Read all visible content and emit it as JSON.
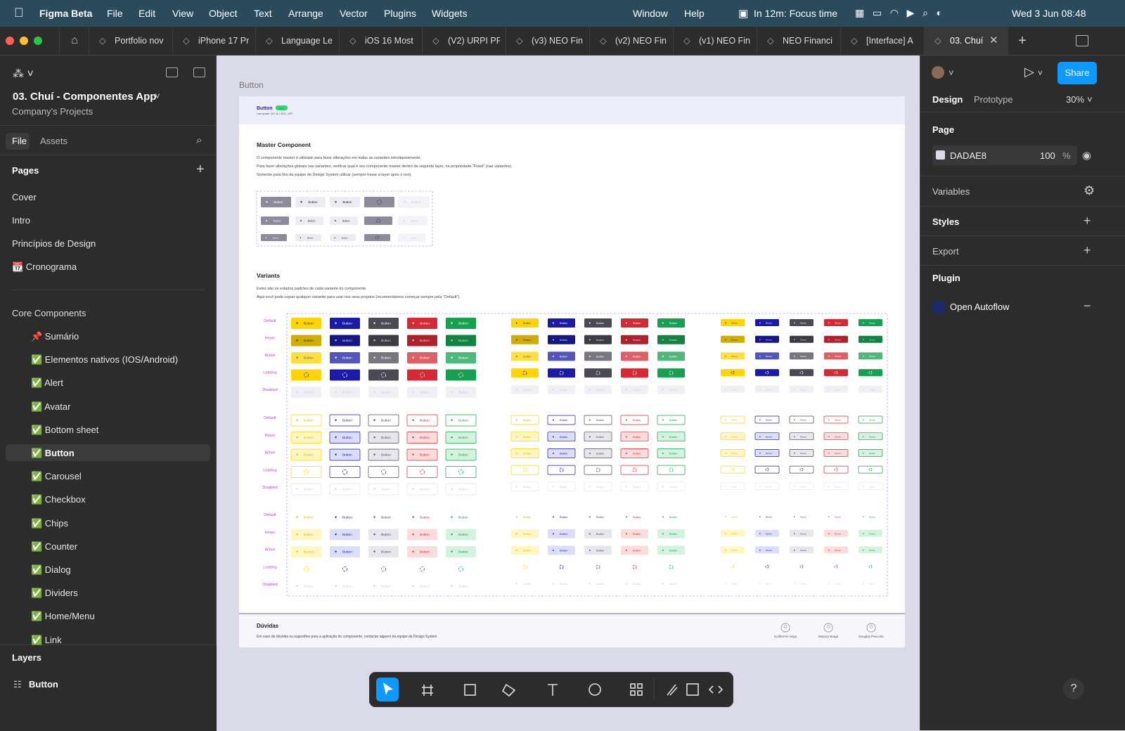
{
  "menubar": {
    "app": "Figma Beta",
    "menus": [
      "File",
      "Edit",
      "View",
      "Object",
      "Text",
      "Arrange",
      "Vector",
      "Plugins",
      "Widgets"
    ],
    "right_menus": [
      "Window",
      "Help"
    ],
    "focus": "In 12m: Focus time",
    "datetime": "Wed 3 Jun 08:48"
  },
  "tabs": [
    "Portfolio nov",
    "iPhone 17 Pr",
    "Language Le",
    "iOS 16 Most",
    "(V2) URPI PR",
    "(v3) NEO Fin",
    "(v2) NEO Fin",
    "(v1) NEO Fin",
    "NEO Financi",
    "[Interface] A",
    "03. Chuí"
  ],
  "left_panel": {
    "file_title": "03. Chuí - Componentes App",
    "team": "Company's Projects",
    "tabs": [
      "File",
      "Assets"
    ],
    "pages_heading": "Pages",
    "pages": [
      "Cover",
      "Intro",
      "Princípios de Design",
      "📆 Cronograma"
    ],
    "section": "Core Components",
    "components": [
      "📌 Sumário",
      "✅ Elementos nativos (IOS/Android)",
      "✅ Alert",
      "✅ Avatar",
      "✅ Bottom sheet",
      "✅ Button",
      "✅ Carousel",
      "✅ Checkbox",
      "✅ Chips",
      "✅ Counter",
      "✅ Dialog",
      "✅ Dividers",
      "✅ Home/Menu",
      "✅ Link"
    ],
    "layers_heading": "Layers",
    "layer": "Button"
  },
  "right_panel": {
    "tabs": [
      "Design",
      "Prototype"
    ],
    "zoom": "30%",
    "share": "Share",
    "page_heading": "Page",
    "page_color": "DADAE8",
    "opacity": "100",
    "opacity_unit": "%",
    "sections": [
      "Variables",
      "Styles",
      "Export"
    ],
    "plugin_heading": "Plugin",
    "plugin": "Open Autoflow"
  },
  "canvas": {
    "frame_label": "Button",
    "header_title": "Button",
    "badge": "New",
    "last_update": "Last update: 09 / 06 / 2022 - APP",
    "master_heading": "Master Component",
    "master_text": [
      "O componente master é utilizado para fazer alterações em todas as variantes simultaneamente.",
      "Para fazer alterações globais nas variantes, verificar qual é seu componente master dentro da segunda layer, na propriedade \"Fixed\" (nas variantes).",
      "Somente para fins da equipe de Design System utilizar (sempre travar a layer após o uso)."
    ],
    "variants_heading": "Variants",
    "variants_text": [
      "Estes são os estados padrões de cada variante do componente.",
      "Aqui você pode copiar qualquer variante para usar nos seus projetos (recomendamos começar sempre pela \"Default\")."
    ],
    "states": [
      "Default",
      "Hover",
      "Active",
      "Loading",
      "Disabled"
    ],
    "button_label": "Button",
    "doubts_heading": "Dúvidas",
    "doubts_text": "Em caso de dúvidas ou sugestões para a aplicação do componente, contactar alguem da equipe de Design System",
    "people": [
      "Guilherme Vega",
      "Marjory Braga",
      "Douglas Pascotto"
    ]
  }
}
